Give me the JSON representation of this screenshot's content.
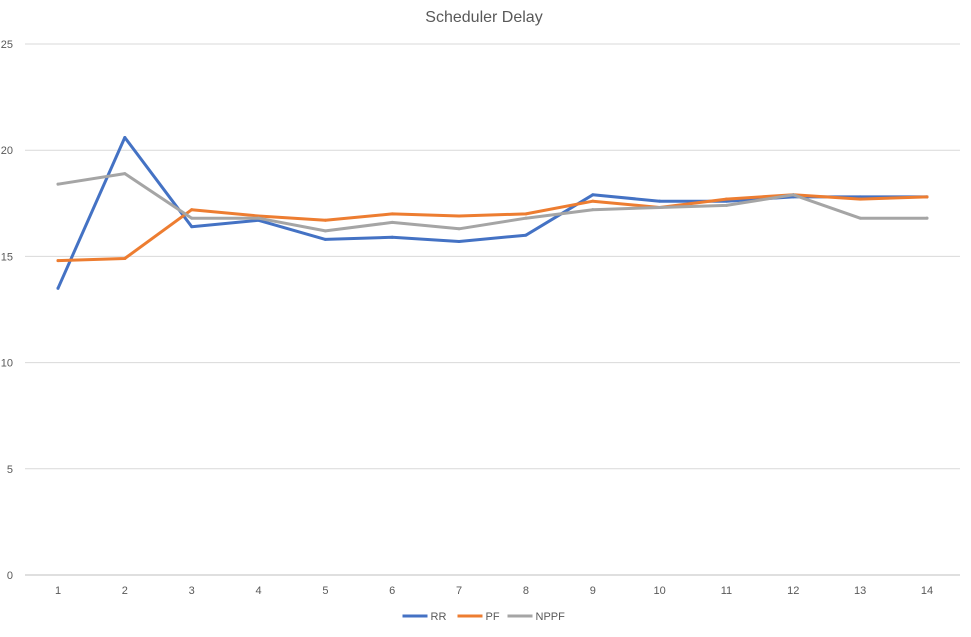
{
  "chart_data": {
    "type": "line",
    "title": "Scheduler Delay",
    "xlabel": "",
    "ylabel": "",
    "categories": [
      "1",
      "2",
      "3",
      "4",
      "5",
      "6",
      "7",
      "8",
      "9",
      "10",
      "11",
      "12",
      "13",
      "14"
    ],
    "ylim": [
      0,
      25
    ],
    "yticks": [
      0,
      5,
      10,
      15,
      20,
      25
    ],
    "grid": true,
    "legend_position": "bottom",
    "series": [
      {
        "name": "RR",
        "color": "#4472c4",
        "values": [
          13.5,
          20.6,
          16.4,
          16.7,
          15.8,
          15.9,
          15.7,
          16.0,
          17.9,
          17.6,
          17.6,
          17.8,
          17.8,
          17.8
        ]
      },
      {
        "name": "PF",
        "color": "#ed7d31",
        "values": [
          14.8,
          14.9,
          17.2,
          16.9,
          16.7,
          17.0,
          16.9,
          17.0,
          17.6,
          17.3,
          17.7,
          17.9,
          17.7,
          17.8
        ]
      },
      {
        "name": "NPPF",
        "color": "#a5a5a5",
        "values": [
          18.4,
          18.9,
          16.8,
          16.8,
          16.2,
          16.6,
          16.3,
          16.8,
          17.2,
          17.3,
          17.4,
          17.9,
          16.8,
          16.8
        ]
      }
    ]
  }
}
